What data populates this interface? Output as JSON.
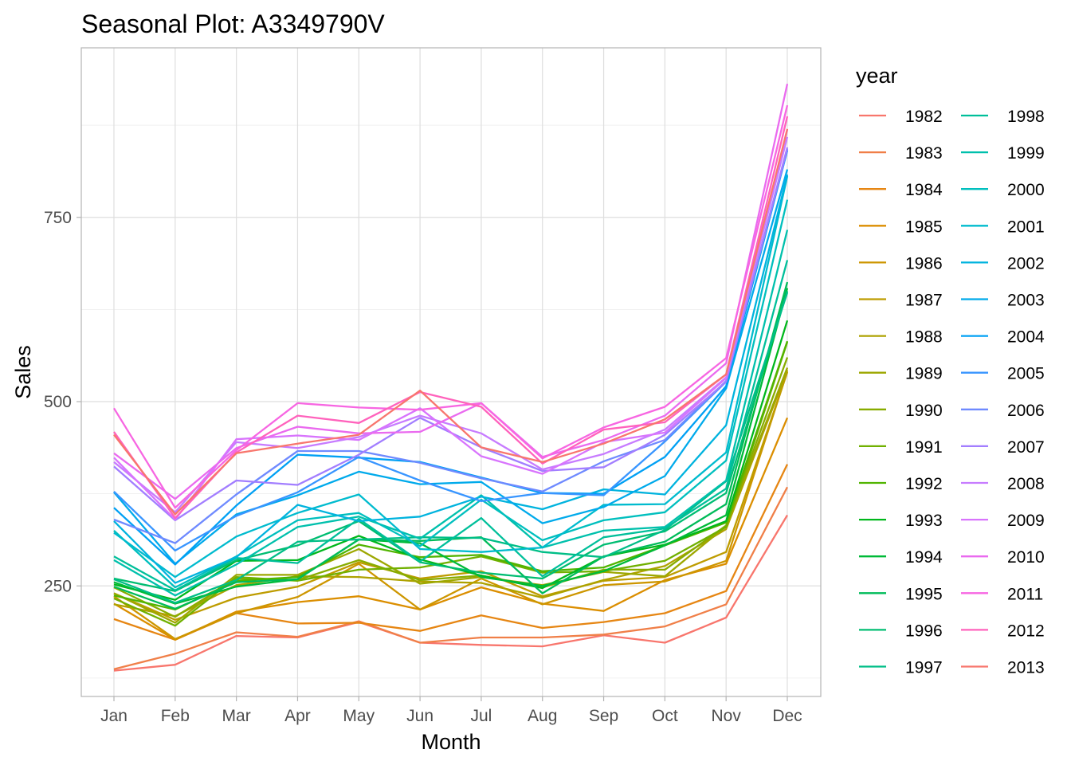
{
  "chart_data": {
    "type": "line",
    "title": "Seasonal Plot: A3349790V",
    "xlabel": "Month",
    "ylabel": "Sales",
    "categories": [
      "Jan",
      "Feb",
      "Mar",
      "Apr",
      "May",
      "Jun",
      "Jul",
      "Aug",
      "Sep",
      "Oct",
      "Nov",
      "Dec"
    ],
    "ylim": [
      100,
      980
    ],
    "yticks": [
      250,
      500,
      750
    ],
    "grid": true,
    "legend": {
      "title": "year",
      "position": "right",
      "columns": 2
    },
    "series": [
      {
        "name": "1982",
        "color": "#F8766D",
        "values": [
          135,
          143,
          182,
          180,
          201,
          173,
          170,
          168,
          183,
          173,
          207,
          346
        ]
      },
      {
        "name": "1983",
        "color": "#F07F48",
        "values": [
          137,
          158,
          187,
          181,
          202,
          173,
          180,
          180,
          184,
          195,
          225,
          384
        ]
      },
      {
        "name": "1984",
        "color": "#E68613",
        "values": [
          205,
          177,
          213,
          199,
          200,
          189,
          210,
          193,
          201,
          213,
          243,
          415
        ]
      },
      {
        "name": "1985",
        "color": "#DB8E00",
        "values": [
          226,
          177,
          215,
          228,
          236,
          218,
          248,
          226,
          216,
          258,
          280,
          478
        ]
      },
      {
        "name": "1986",
        "color": "#CD9600",
        "values": [
          236,
          178,
          213,
          235,
          280,
          218,
          260,
          225,
          251,
          256,
          284,
          541
        ]
      },
      {
        "name": "1987",
        "color": "#BE9C00",
        "values": [
          240,
          204,
          234,
          249,
          282,
          260,
          270,
          236,
          257,
          262,
          296,
          540
        ]
      },
      {
        "name": "1988",
        "color": "#AEA200",
        "values": [
          225,
          209,
          251,
          263,
          262,
          256,
          254,
          234,
          258,
          277,
          327,
          543
        ]
      },
      {
        "name": "1989",
        "color": "#9DA700",
        "values": [
          240,
          200,
          265,
          265,
          300,
          253,
          262,
          251,
          269,
          263,
          331,
          546
        ]
      },
      {
        "name": "1990",
        "color": "#88AC00",
        "values": [
          248,
          208,
          260,
          258,
          285,
          258,
          264,
          248,
          272,
          272,
          332,
          560
        ]
      },
      {
        "name": "1991",
        "color": "#70B000",
        "values": [
          233,
          196,
          262,
          257,
          272,
          275,
          290,
          268,
          270,
          284,
          330,
          581
        ]
      },
      {
        "name": "1992",
        "color": "#51B400",
        "values": [
          237,
          218,
          257,
          262,
          306,
          289,
          292,
          270,
          275,
          305,
          336,
          582
        ]
      },
      {
        "name": "1993",
        "color": "#00B71C",
        "values": [
          252,
          231,
          284,
          285,
          318,
          286,
          264,
          247,
          290,
          306,
          338,
          610
        ]
      },
      {
        "name": "1994",
        "color": "#00BA38",
        "values": [
          255,
          226,
          249,
          259,
          313,
          308,
          262,
          250,
          270,
          305,
          346,
          654
        ]
      },
      {
        "name": "1995",
        "color": "#00BB59",
        "values": [
          249,
          219,
          255,
          259,
          313,
          311,
          316,
          240,
          290,
          310,
          361,
          662
        ]
      },
      {
        "name": "1996",
        "color": "#00BD72",
        "values": [
          260,
          243,
          285,
          305,
          338,
          282,
          268,
          260,
          306,
          324,
          376,
          650
        ]
      },
      {
        "name": "1997",
        "color": "#00BE87",
        "values": [
          259,
          227,
          258,
          310,
          313,
          316,
          315,
          296,
          289,
          326,
          392,
          648
        ]
      },
      {
        "name": "1998",
        "color": "#00BF9A",
        "values": [
          290,
          244,
          288,
          281,
          341,
          283,
          342,
          263,
          316,
          328,
          382,
          692
        ]
      },
      {
        "name": "1999",
        "color": "#00C0AC",
        "values": [
          285,
          237,
          279,
          330,
          344,
          314,
          373,
          302,
          325,
          330,
          393,
          733
        ]
      },
      {
        "name": "2000",
        "color": "#00BFBE",
        "values": [
          325,
          248,
          290,
          339,
          349,
          304,
          367,
          312,
          339,
          350,
          420,
          774
        ]
      },
      {
        "name": "2001",
        "color": "#00BBCE",
        "values": [
          322,
          262,
          317,
          349,
          374,
          300,
          296,
          302,
          360,
          361,
          431,
          806
        ]
      },
      {
        "name": "2002",
        "color": "#00B3DE",
        "values": [
          338,
          254,
          289,
          360,
          338,
          344,
          371,
          354,
          381,
          374,
          468,
          808
        ]
      },
      {
        "name": "2003",
        "color": "#00AAEB",
        "values": [
          377,
          280,
          347,
          373,
          405,
          388,
          391,
          335,
          357,
          399,
          518,
          815
        ]
      },
      {
        "name": "2004",
        "color": "#00A0F4",
        "values": [
          356,
          279,
          359,
          428,
          424,
          418,
          397,
          376,
          375,
          425,
          521,
          841
        ]
      },
      {
        "name": "2005",
        "color": "#3895FF",
        "values": [
          378,
          298,
          345,
          377,
          425,
          393,
          365,
          376,
          373,
          446,
          527,
          841
        ]
      },
      {
        "name": "2006",
        "color": "#6F8AFF",
        "values": [
          340,
          308,
          374,
          433,
          433,
          417,
          396,
          378,
          419,
          448,
          528,
          843
        ]
      },
      {
        "name": "2007",
        "color": "#A27EFF",
        "values": [
          412,
          339,
          393,
          387,
          428,
          478,
          438,
          406,
          411,
          455,
          527,
          845
        ]
      },
      {
        "name": "2008",
        "color": "#C77CFF",
        "values": [
          418,
          350,
          445,
          437,
          452,
          481,
          457,
          408,
          429,
          462,
          533,
          859
        ]
      },
      {
        "name": "2009",
        "color": "#D874FD",
        "values": [
          424,
          340,
          449,
          454,
          448,
          491,
          426,
          402,
          445,
          458,
          532,
          869
        ]
      },
      {
        "name": "2010",
        "color": "#EA6AEF",
        "values": [
          430,
          368,
          437,
          466,
          457,
          459,
          498,
          425,
          448,
          481,
          552,
          931
        ]
      },
      {
        "name": "2011",
        "color": "#F766E2",
        "values": [
          491,
          356,
          434,
          498,
          492,
          489,
          498,
          423,
          465,
          493,
          559,
          902
        ]
      },
      {
        "name": "2012",
        "color": "#FF62BC",
        "values": [
          459,
          342,
          431,
          481,
          471,
          513,
          493,
          416,
          462,
          472,
          537,
          887
        ]
      },
      {
        "name": "2013",
        "color": "#F8766D",
        "values": [
          455,
          347,
          430,
          443,
          455,
          515,
          438,
          418,
          443,
          476,
          537,
          870
        ]
      }
    ]
  }
}
